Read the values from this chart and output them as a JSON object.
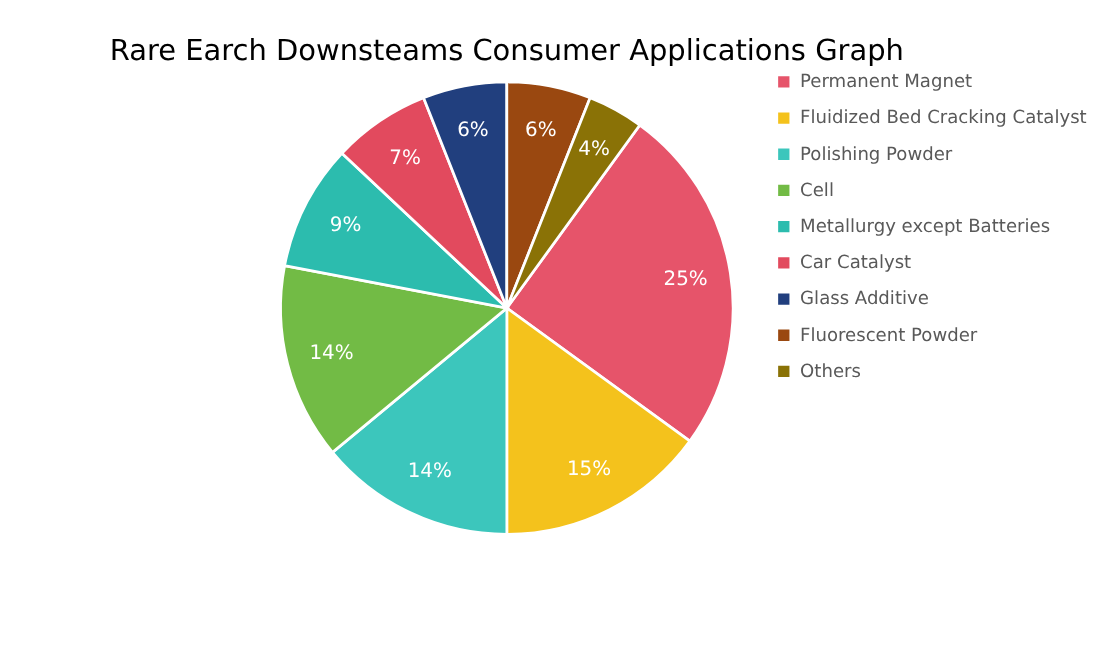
{
  "chart_data": {
    "type": "pie",
    "title": "Rare Earch Downsteams Consumer Applications Graph",
    "categories": [
      "Permanent Magnet",
      "Fluidized Bed Cracking Catalyst",
      "Polishing Powder",
      "Cell",
      "Metallurgy except Batteries",
      "Car Catalyst",
      "Glass Additive",
      "Fluorescent Powder",
      "Others"
    ],
    "values": [
      25,
      15,
      14,
      14,
      9,
      7,
      6,
      6,
      4
    ],
    "value_labels": [
      "25%",
      "15%",
      "14%",
      "14%",
      "9%",
      "7%",
      "6%",
      "6%",
      "4%"
    ],
    "colors": [
      "#e6546a",
      "#f4c21c",
      "#3cc6bc",
      "#72bb45",
      "#2cbcae",
      "#e24a5e",
      "#213f7e",
      "#9a4810",
      "#8a7206"
    ],
    "legend": "right"
  }
}
